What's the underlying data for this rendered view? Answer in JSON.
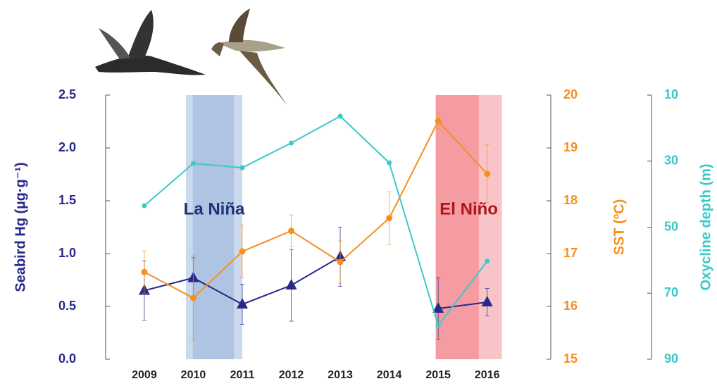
{
  "chart_data": {
    "type": "line",
    "x": [
      2009,
      2010,
      2011,
      2012,
      2013,
      2014,
      2015,
      2016
    ],
    "xlim": [
      2008.21,
      2017.27
    ],
    "xticks": [
      2009,
      2010,
      2011,
      2012,
      2013,
      2014,
      2015,
      2016
    ],
    "y_label": "Seabird Hg (µg·g⁻¹)",
    "ylim": [
      0,
      2.5
    ],
    "yticks": [
      {
        "value": 0,
        "label": "0.0"
      },
      {
        "value": 0.5,
        "label": "0.5"
      },
      {
        "value": 1,
        "label": "1.0"
      },
      {
        "value": 1.5,
        "label": "1.5"
      },
      {
        "value": 2,
        "label": "2.0"
      },
      2.5
    ],
    "y2_label": "SST (ºC)",
    "y2lim": [
      15,
      20
    ],
    "y2ticks": [
      15,
      16,
      17,
      18,
      19,
      20
    ],
    "y3_label": "Oxycline depth (m)",
    "y3lim": [
      10,
      90
    ],
    "y3_inverted": true,
    "y3ticks": [
      10,
      30,
      50,
      70,
      90
    ],
    "bands": [
      {
        "label": "La Niña",
        "range": [
          2009.85,
          2011.0
        ],
        "core": [
          2009.99,
          2010.83
        ],
        "color": "#cbd9ec",
        "core_color": "#aec4e2",
        "label_color": "#1f2f7a"
      },
      {
        "label": "El Niño",
        "range": [
          2014.95,
          2016.3
        ],
        "core": [
          2014.95,
          2015.83
        ],
        "color": "#f8c4c8",
        "core_color": "#f59ca2",
        "label_color": "#b0141c"
      }
    ],
    "series": [
      {
        "name": "Seabird Hg",
        "axis": "y",
        "color": "#28288a",
        "marker": "triangle",
        "values": [
          0.65,
          0.77,
          0.52,
          0.7,
          0.97,
          null,
          0.48,
          0.54
        ],
        "errors": [
          0.28,
          0.19,
          0.19,
          0.34,
          0.28,
          null,
          0.29,
          0.13
        ]
      },
      {
        "name": "SST",
        "axis": "y2",
        "color": "#f5901e",
        "marker": "circle",
        "values": [
          16.65,
          16.16,
          17.04,
          17.43,
          16.84,
          17.67,
          19.51,
          18.51
        ],
        "errors": [
          0.4,
          0.8,
          0.5,
          0.3,
          0.4,
          0.5,
          0.15,
          0.55
        ]
      },
      {
        "name": "Oxycline depth",
        "axis": "y3",
        "color": "#3cc8c8",
        "marker": "dot",
        "values": [
          43.5,
          30.7,
          32,
          24.5,
          16.4,
          30.5,
          79.8,
          60.3
        ]
      }
    ]
  }
}
